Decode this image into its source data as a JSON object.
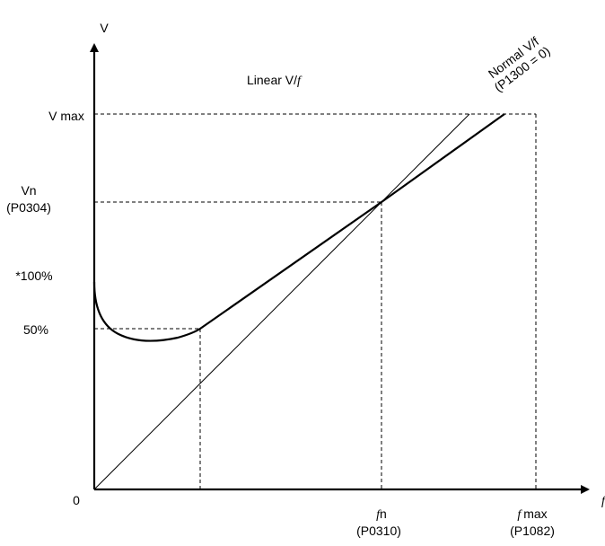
{
  "axes": {
    "y_label": "V",
    "x_label": "f",
    "origin_label": "0"
  },
  "labels": {
    "title": "Linear V/",
    "title_f": "f",
    "normal_line_1": "Normal V/f",
    "normal_line_2": "(P1300 = 0)",
    "v_max": "V max",
    "vn": "Vn",
    "vn_param": "(P0304)",
    "pct_100": "*100%",
    "pct_50": "50%",
    "fn_f": "f",
    "fn_n": "n",
    "fn_param": "(P0310)",
    "fmax_f": "f",
    "fmax_rest": "max",
    "fmax_param": "(P1082)"
  }
}
